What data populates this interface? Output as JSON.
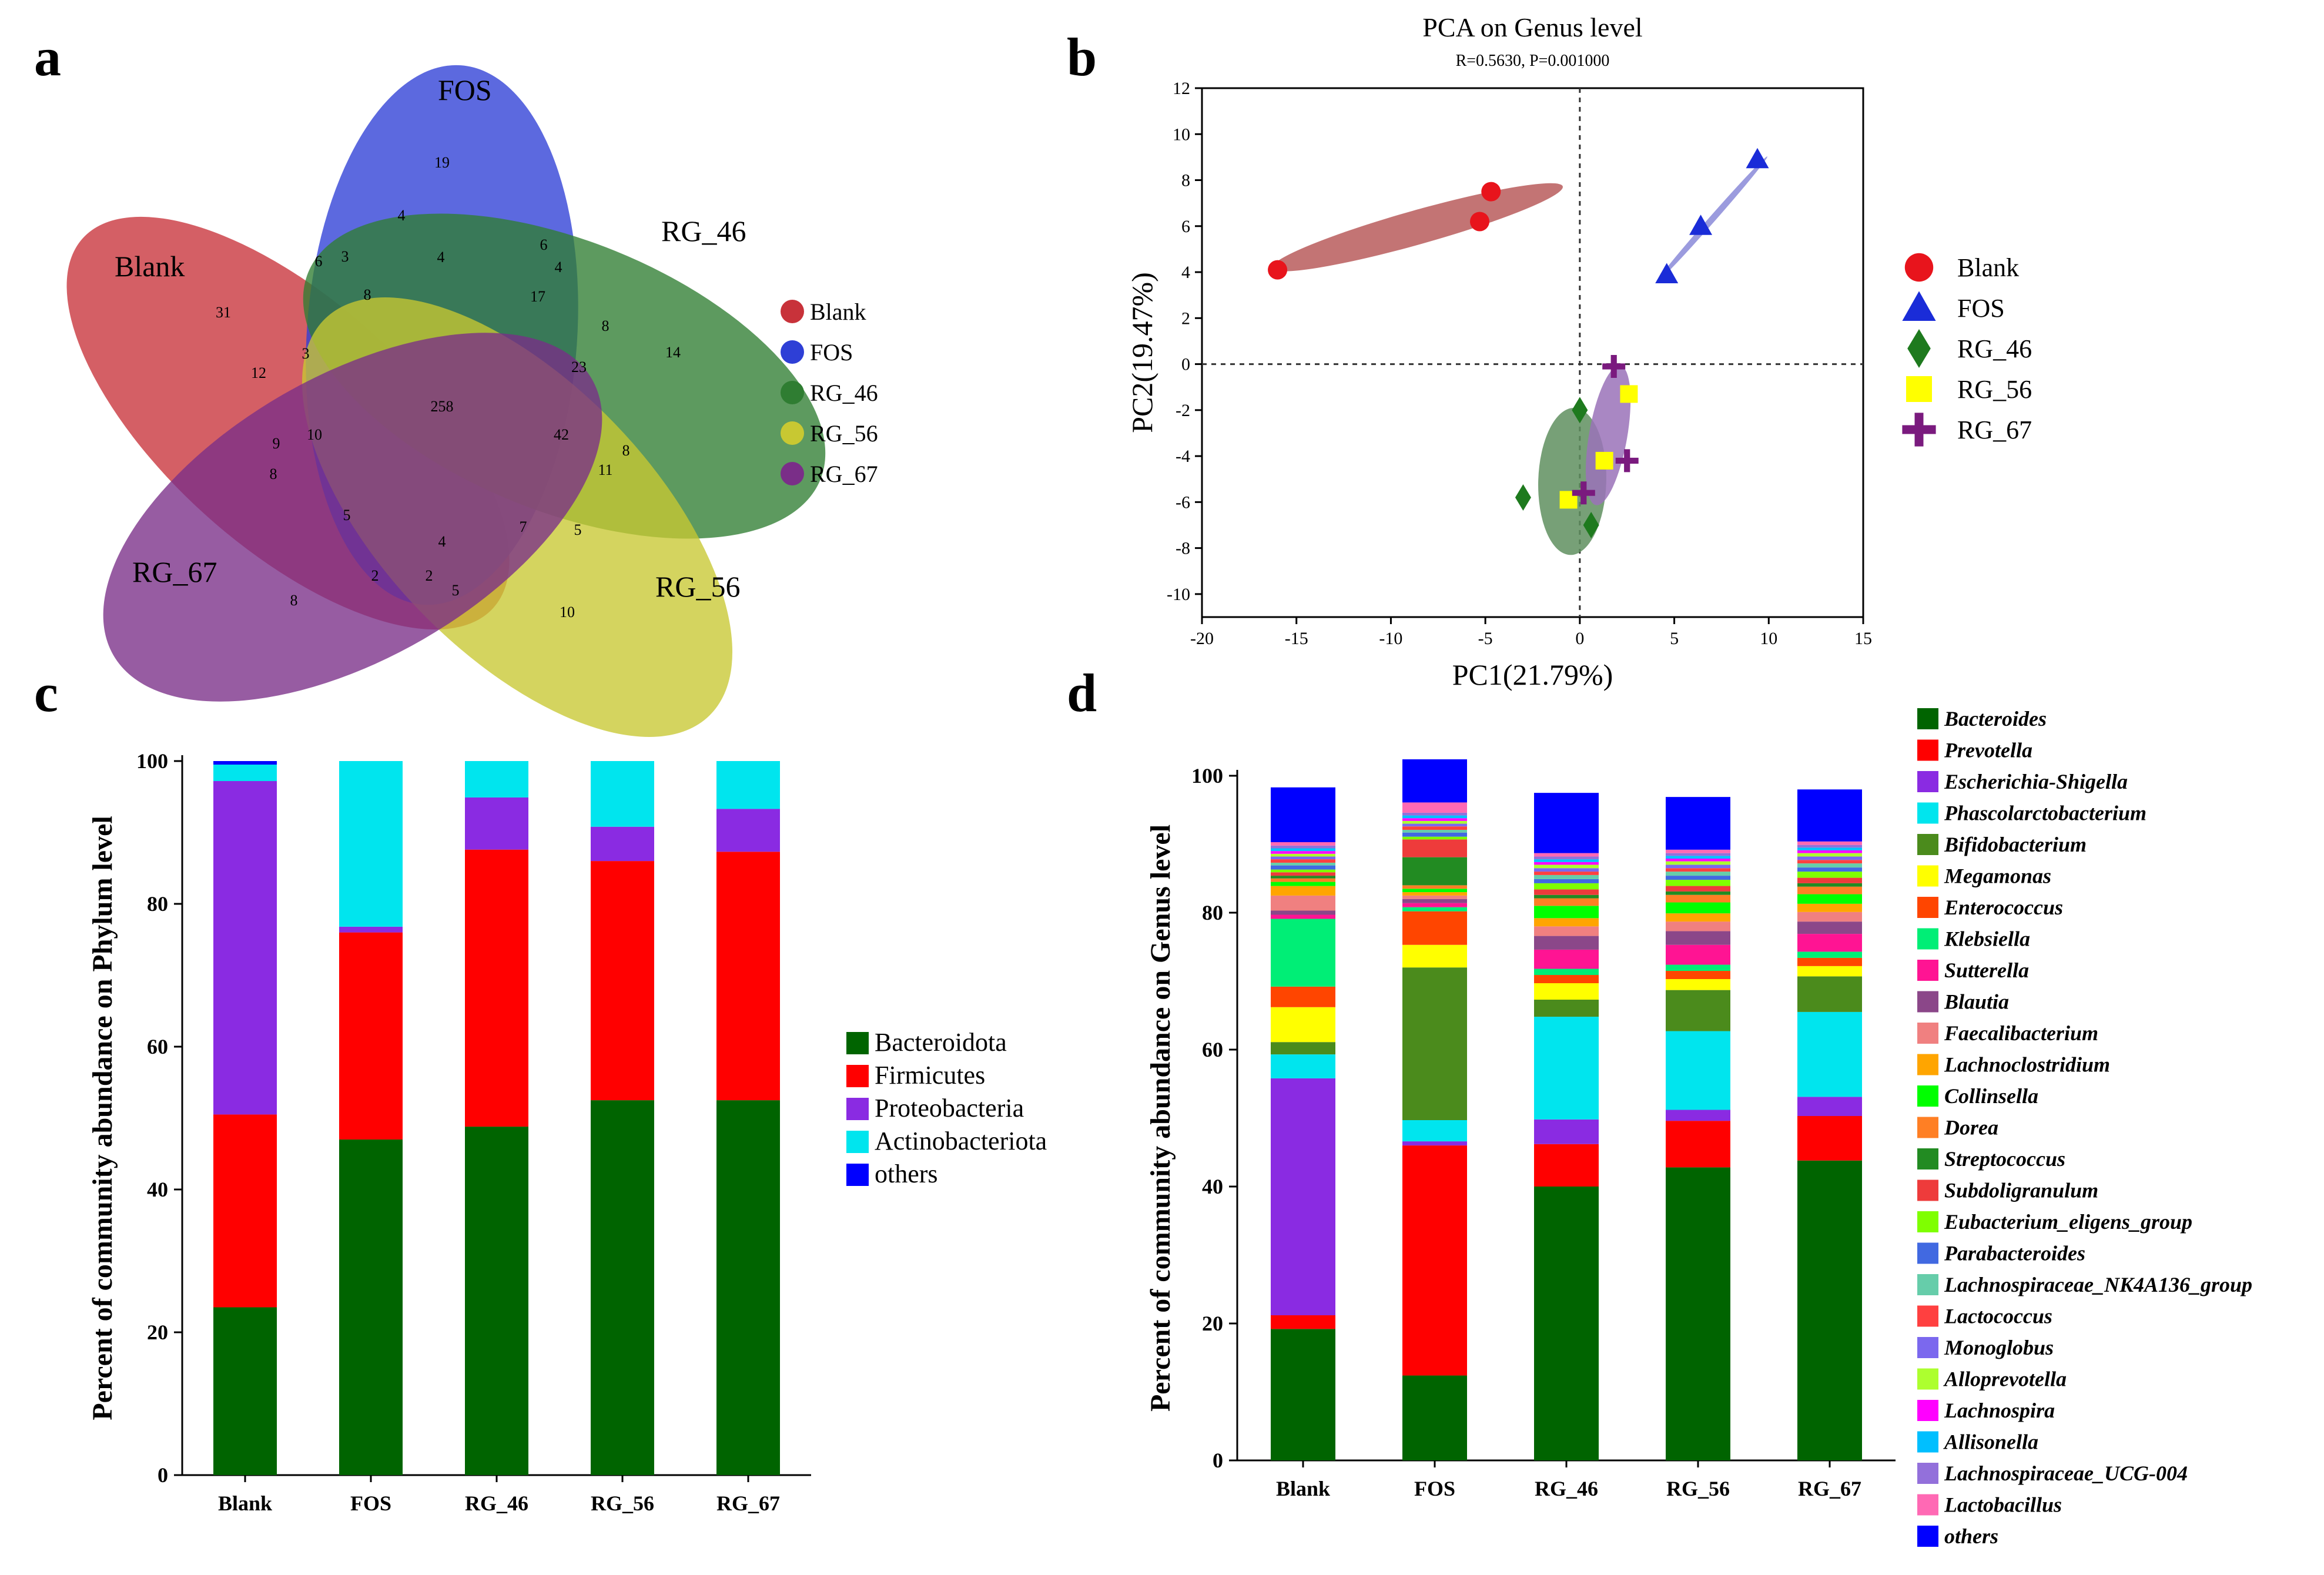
{
  "panels": {
    "a": "a",
    "b": "b",
    "c": "c",
    "d": "d"
  },
  "chart_data": [
    {
      "type": "venn",
      "panel": "a",
      "sets": [
        "Blank",
        "FOS",
        "RG_46",
        "RG_56",
        "RG_67"
      ],
      "colors": [
        "#c8323a",
        "#2e3fd6",
        "#2f7d32",
        "#c8c832",
        "#7a2e88"
      ],
      "legend": [
        "Blank",
        "FOS",
        "RG_46",
        "RG_56",
        "RG_67"
      ],
      "counts": [
        {
          "region": "Blank only",
          "value": "31"
        },
        {
          "region": "FOS only",
          "value": "19"
        },
        {
          "region": "RG_46 only",
          "value": "14"
        },
        {
          "region": "RG_56 only",
          "value": "10"
        },
        {
          "region": "RG_67 only",
          "value": "8"
        },
        {
          "region": "core",
          "value": "258"
        },
        {
          "region": "r1",
          "value": "4"
        },
        {
          "region": "r2",
          "value": "6"
        },
        {
          "region": "r3",
          "value": "3"
        },
        {
          "region": "r4",
          "value": "4"
        },
        {
          "region": "r5",
          "value": "6"
        },
        {
          "region": "r6",
          "value": "4"
        },
        {
          "region": "r7",
          "value": "8"
        },
        {
          "region": "r8",
          "value": "17"
        },
        {
          "region": "r9",
          "value": "8"
        },
        {
          "region": "r10",
          "value": "12"
        },
        {
          "region": "r11",
          "value": "3"
        },
        {
          "region": "r12",
          "value": "23"
        },
        {
          "region": "r13",
          "value": "42"
        },
        {
          "region": "r14",
          "value": "9"
        },
        {
          "region": "r15",
          "value": "10"
        },
        {
          "region": "r16",
          "value": "8"
        },
        {
          "region": "r17",
          "value": "8"
        },
        {
          "region": "r18",
          "value": "11"
        },
        {
          "region": "r19",
          "value": "5"
        },
        {
          "region": "r20",
          "value": "4"
        },
        {
          "region": "r21",
          "value": "7"
        },
        {
          "region": "r22",
          "value": "5"
        },
        {
          "region": "r23",
          "value": "2"
        },
        {
          "region": "r24",
          "value": "2"
        },
        {
          "region": "r25",
          "value": "5"
        }
      ]
    },
    {
      "type": "scatter",
      "panel": "b",
      "title": "PCA on Genus level",
      "subtitle": "R=0.5630, P=0.001000",
      "xlabel": "PC1(21.79%)",
      "ylabel": "PC2(19.47%)",
      "xlim": [
        -20,
        15
      ],
      "ylim": [
        -11,
        12
      ],
      "xticks": [
        -20,
        -15,
        -10,
        -5,
        0,
        5,
        10,
        15
      ],
      "yticks": [
        -10,
        -8,
        -6,
        -4,
        -2,
        0,
        2,
        4,
        6,
        8,
        10,
        12
      ],
      "series": [
        {
          "name": "Blank",
          "marker": "circle",
          "color": "#e8141c",
          "points": [
            [
              -16,
              4.1
            ],
            [
              -5.3,
              6.2
            ],
            [
              -4.7,
              7.5
            ]
          ],
          "ellipse": {
            "cx": -8.6,
            "cy": 5.95,
            "rx": 7.9,
            "ry": 0.75,
            "angle": 13,
            "color": "#b85c5c"
          }
        },
        {
          "name": "FOS",
          "marker": "triangle",
          "color": "#1a2cd8",
          "points": [
            [
              4.6,
              3.9
            ],
            [
              6.4,
              6.0
            ],
            [
              9.4,
              8.9
            ]
          ],
          "ellipse": {
            "cx": 7.0,
            "cy": 6.3,
            "rx": 4.0,
            "ry": 0.15,
            "angle": 43,
            "color": "#8a8ad8"
          }
        },
        {
          "name": "RG_46",
          "marker": "diamond",
          "color": "#1e7a1e",
          "points": [
            [
              0,
              -2.0
            ],
            [
              -3,
              -5.8
            ],
            [
              0.6,
              -7.0
            ]
          ],
          "ellipse": {
            "cx": -0.4,
            "cy": -5.1,
            "rx": 3.2,
            "ry": 1.8,
            "angle": 88,
            "color": "#5f8f5f"
          }
        },
        {
          "name": "RG_56",
          "marker": "square",
          "color": "#ffff00",
          "points": [
            [
              2.6,
              -1.3
            ],
            [
              1.3,
              -4.2
            ],
            [
              -0.6,
              -5.9
            ]
          ],
          "ellipse": null
        },
        {
          "name": "RG_67",
          "marker": "plus",
          "color": "#7a1a7e",
          "points": [
            [
              1.8,
              -0.1
            ],
            [
              2.5,
              -4.2
            ],
            [
              0.2,
              -5.6
            ]
          ],
          "ellipse": {
            "cx": 1.5,
            "cy": -3.1,
            "rx": 3.1,
            "ry": 1.0,
            "angle": 78,
            "color": "#9a72b8"
          }
        }
      ],
      "legend": [
        "Blank",
        "FOS",
        "RG_46",
        "RG_56",
        "RG_67"
      ]
    },
    {
      "type": "bar",
      "panel": "c",
      "stacked": true,
      "ylabel": "Percent of community abundance on Phylum level",
      "ylim": [
        0,
        100
      ],
      "yticks": [
        "0",
        "20",
        "40",
        "60",
        "80",
        "100"
      ],
      "categories": [
        "Blank",
        "FOS",
        "RG_46",
        "RG_56",
        "RG_67"
      ],
      "series": [
        {
          "name": "Bacteroidota",
          "color": "#006400",
          "values": [
            23.5,
            47.0,
            48.8,
            52.5,
            52.5
          ]
        },
        {
          "name": "Firmicutes",
          "color": "#ff0000",
          "values": [
            27.0,
            29.0,
            38.8,
            33.5,
            34.8
          ]
        },
        {
          "name": "Proteobacteria",
          "color": "#8a2be2",
          "values": [
            46.7,
            0.8,
            7.3,
            4.8,
            6.0
          ]
        },
        {
          "name": "Actinobacteriota",
          "color": "#00e5ee",
          "values": [
            2.3,
            23.2,
            5.1,
            9.2,
            6.7
          ]
        },
        {
          "name": "others",
          "color": "#0000ff",
          "values": [
            0.5,
            0.0,
            0.0,
            0.0,
            0.0
          ]
        }
      ]
    },
    {
      "type": "bar",
      "panel": "d",
      "stacked": true,
      "ylabel": "Percent of community abundance on Genus level",
      "ylim": [
        0,
        100
      ],
      "yticks": [
        "0",
        "20",
        "40",
        "60",
        "80",
        "100"
      ],
      "categories": [
        "Blank",
        "FOS",
        "RG_46",
        "RG_56",
        "RG_67"
      ],
      "series": [
        {
          "name": "Bacteroides",
          "color": "#006400",
          "values": [
            19.2,
            12.4,
            40.0,
            42.8,
            43.8
          ]
        },
        {
          "name": "Prevotella",
          "color": "#ff0000",
          "values": [
            2.0,
            33.6,
            6.2,
            6.8,
            6.5
          ]
        },
        {
          "name": "Escherichia-Shigella",
          "color": "#8a2be2",
          "values": [
            34.6,
            0.6,
            3.6,
            1.6,
            2.8
          ]
        },
        {
          "name": "Phascolarctobacterium",
          "color": "#00e5ee",
          "values": [
            3.5,
            3.1,
            15.0,
            11.5,
            12.4
          ]
        },
        {
          "name": "Bifidobacterium",
          "color": "#4b8b1c",
          "values": [
            1.8,
            22.3,
            2.5,
            6.0,
            5.2
          ]
        },
        {
          "name": "Megamonas",
          "color": "#ffff00",
          "values": [
            5.1,
            3.3,
            2.4,
            1.6,
            1.5
          ]
        },
        {
          "name": "Enterococcus",
          "color": "#ff4500",
          "values": [
            3.0,
            4.9,
            1.2,
            1.2,
            1.2
          ]
        },
        {
          "name": "Klebsiella",
          "color": "#00ee76",
          "values": [
            9.9,
            0.6,
            0.9,
            0.9,
            0.9
          ]
        },
        {
          "name": "Sutterella",
          "color": "#ff1493",
          "values": [
            0.6,
            0.6,
            2.8,
            2.9,
            2.6
          ]
        },
        {
          "name": "Blautia",
          "color": "#8b4789",
          "values": [
            0.6,
            0.6,
            2.0,
            2.0,
            1.8
          ]
        },
        {
          "name": "Faecalibacterium",
          "color": "#f08080",
          "values": [
            2.2,
            0.5,
            1.4,
            1.4,
            1.4
          ]
        },
        {
          "name": "Lachnoclostridium",
          "color": "#ffa500",
          "values": [
            1.4,
            0.5,
            1.2,
            1.2,
            1.2
          ]
        },
        {
          "name": "Collinsella",
          "color": "#00ff00",
          "values": [
            0.6,
            0.5,
            1.8,
            1.6,
            1.4
          ]
        },
        {
          "name": "Dorea",
          "color": "#ff7f24",
          "values": [
            0.5,
            0.5,
            1.1,
            1.1,
            1.1
          ]
        },
        {
          "name": "Streptococcus",
          "color": "#228b22",
          "values": [
            0.4,
            4.1,
            0.5,
            0.5,
            0.5
          ]
        },
        {
          "name": "Subdoligranulum",
          "color": "#ee3b3b",
          "values": [
            0.5,
            2.6,
            0.8,
            0.8,
            0.8
          ]
        },
        {
          "name": "Eubacterium_eligens_group",
          "color": "#7fff00",
          "values": [
            0.4,
            0.4,
            0.9,
            0.9,
            0.9
          ]
        },
        {
          "name": "Parabacteroides",
          "color": "#4169e1",
          "values": [
            0.6,
            0.6,
            0.6,
            0.6,
            0.6
          ]
        },
        {
          "name": "Lachnospiraceae_NK4A136_group",
          "color": "#66cdaa",
          "values": [
            0.4,
            0.4,
            0.6,
            0.6,
            0.6
          ]
        },
        {
          "name": "Lactococcus",
          "color": "#ff4040",
          "values": [
            0.5,
            0.5,
            0.5,
            0.5,
            0.5
          ]
        },
        {
          "name": "Monoglobus",
          "color": "#7b68ee",
          "values": [
            0.4,
            0.4,
            0.5,
            0.5,
            0.5
          ]
        },
        {
          "name": "Alloprevotella",
          "color": "#adff2f",
          "values": [
            0.4,
            0.4,
            0.5,
            0.5,
            0.5
          ]
        },
        {
          "name": "Lachnospira",
          "color": "#ff00ff",
          "values": [
            0.4,
            0.4,
            0.4,
            0.4,
            0.4
          ]
        },
        {
          "name": "Allisonella",
          "color": "#00bfff",
          "values": [
            0.4,
            0.4,
            0.4,
            0.4,
            0.4
          ]
        },
        {
          "name": "Lachnospiraceae_UCG-004",
          "color": "#9370db",
          "values": [
            0.4,
            0.4,
            0.4,
            0.4,
            0.4
          ]
        },
        {
          "name": "Lactobacillus",
          "color": "#ff69b4",
          "values": [
            0.5,
            1.5,
            0.5,
            0.5,
            0.5
          ]
        },
        {
          "name": "others",
          "color": "#0000ff",
          "values": [
            8.0,
            6.3,
            8.8,
            7.7,
            7.6
          ]
        }
      ]
    }
  ]
}
